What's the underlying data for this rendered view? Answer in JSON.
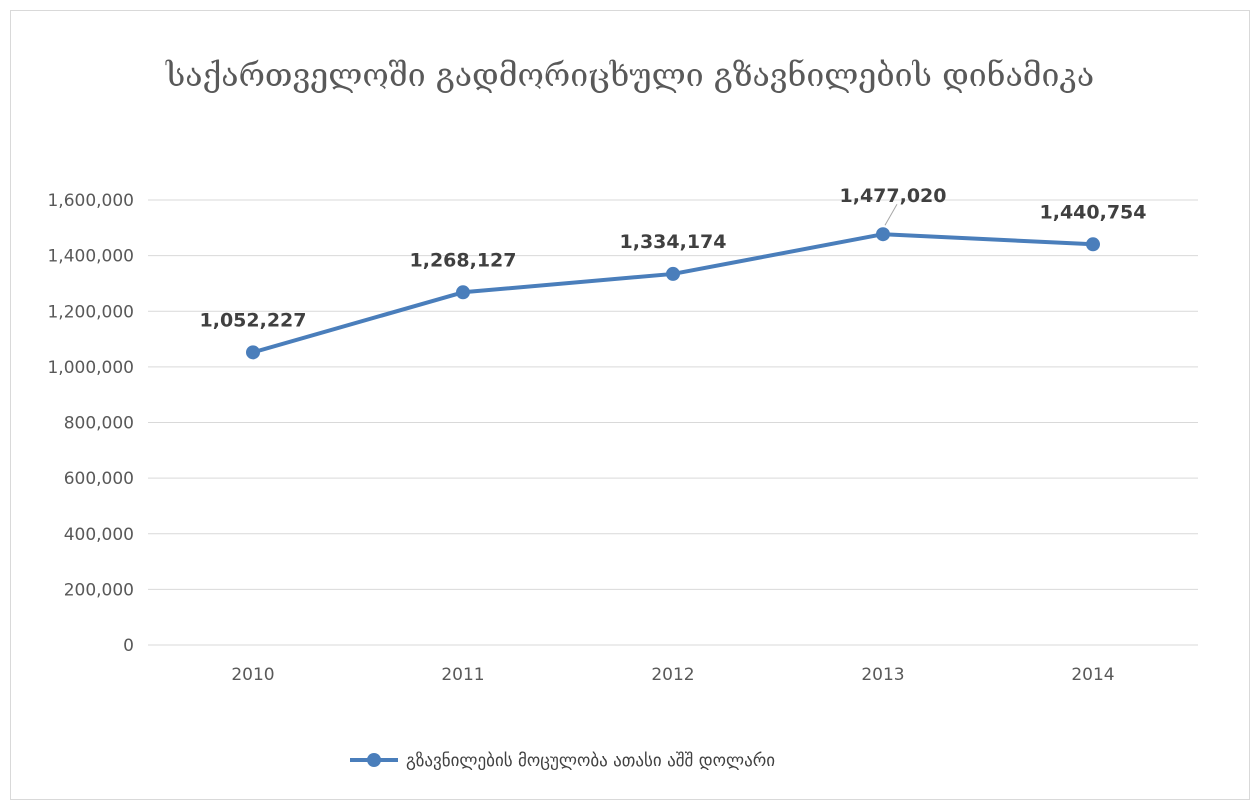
{
  "chart_data": {
    "type": "line",
    "title": "საქართველოში გადმორიცხული გზავნილების დინამიკა",
    "categories": [
      "2010",
      "2011",
      "2012",
      "2013",
      "2014"
    ],
    "series": [
      {
        "name": "გზავნილების მოცულობა ათასი აშშ დოლარი",
        "values": [
          1052227,
          1268127,
          1334174,
          1477020,
          1440754
        ],
        "labels": [
          "1,052,227",
          "1,268,127",
          "1,334,174",
          "1,477,020",
          "1,440,754"
        ],
        "color": "#4a7ebb"
      }
    ],
    "ylim": [
      0,
      1600000
    ],
    "yticks": [
      0,
      200000,
      400000,
      600000,
      800000,
      1000000,
      1200000,
      1400000,
      1600000
    ],
    "ytick_labels": [
      "0",
      "200,000",
      "400,000",
      "600,000",
      "800,000",
      "1,000,000",
      "1,200,000",
      "1,400,000",
      "1,600,000"
    ],
    "grid": true,
    "legend_position": "bottom"
  }
}
